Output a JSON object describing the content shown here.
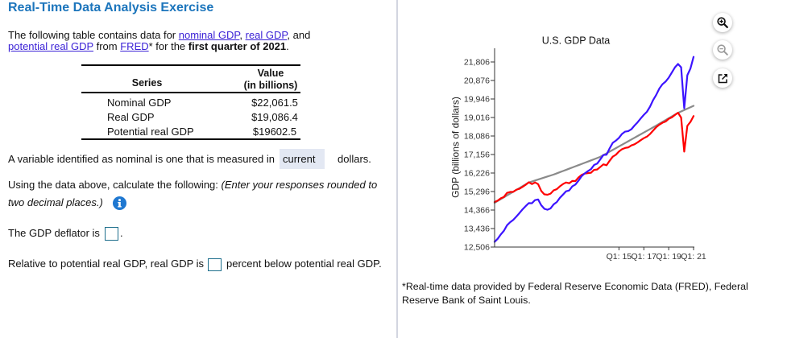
{
  "header": {
    "title": "Real-Time Data Analysis Exercise"
  },
  "intro": {
    "line1": {
      "before": "The following table contains data for ",
      "link_nominal": "nominal GDP",
      "sep": ", ",
      "link_real": "real GDP",
      "after": ", and"
    },
    "line2": {
      "link_potential": "potential real GDP",
      "from": " from ",
      "link_fred": "FRED",
      "for_the": "* for the ",
      "bold": "first quarter of 2021",
      "period": "."
    }
  },
  "table": {
    "headers": {
      "series": "Series",
      "value_line1": "Value",
      "value_line2": "(in billions)"
    },
    "rows": [
      {
        "series": "Nominal GDP",
        "value": "$22,061.5"
      },
      {
        "series": "Real GDP",
        "value": "$19,086.4"
      },
      {
        "series": "Potential real GDP",
        "value": "$19602.5"
      }
    ]
  },
  "question_nominal": {
    "before": "A variable identified as nominal is one that is measured in",
    "selected": "current",
    "after": "dollars."
  },
  "instructions": {
    "text": "Using the data above, calculate the following: ",
    "italic_line1": "(Enter your responses rounded to",
    "italic_line2": "two decimal places.)",
    "icon": "info-icon"
  },
  "deflator": {
    "label": "The GDP deflator is",
    "value": "",
    "suffix": "."
  },
  "output_gap": {
    "label": "Relative to potential real GDP, real GDP is",
    "value": "",
    "suffix": "percent below potential real GDP."
  },
  "chart_toolbar": {
    "zoom_in_icon": "zoom-in-icon",
    "zoom_out_icon": "zoom-out-icon",
    "popout_icon": "open-in-new-window-icon"
  },
  "footnote": {
    "line1": "*Real-time data provided by Federal Reserve Economic Data (FRED), Federal",
    "line2": "Reserve Bank of Saint Louis."
  },
  "colors": {
    "title": "#1c75bc",
    "link": "#3b22d6",
    "info": "#1f78d1",
    "input_border": "#1d6e8c",
    "select_bg": "#e3e8f3"
  },
  "chart_data": {
    "type": "line",
    "title": "U.S. GDP Data",
    "xlabel": "",
    "ylabel": "GDP (billions of dollars)",
    "grid": false,
    "legend": "none",
    "xlim": [
      2005,
      2021
    ],
    "ylim": [
      12506,
      21806
    ],
    "y_ticks": [
      12506,
      13436,
      14366,
      15296,
      16226,
      17156,
      18086,
      19016,
      19946,
      20876,
      21806
    ],
    "y_tick_labels": [
      "12,506",
      "13,436",
      "14,366",
      "15,296",
      "16,226",
      "17,156",
      "18,086",
      "19,016",
      "19,946",
      "20,876",
      "21,806"
    ],
    "x_ticks": [
      2015,
      2017,
      2019,
      2021
    ],
    "x_tick_labels": [
      "Q1: 15",
      "Q1: 17",
      "Q1: 19",
      "Q1: 21"
    ],
    "x": [
      2005,
      2005.25,
      2005.5,
      2005.75,
      2006,
      2006.25,
      2006.5,
      2006.75,
      2007,
      2007.25,
      2007.5,
      2007.75,
      2008,
      2008.25,
      2008.5,
      2008.75,
      2009,
      2009.25,
      2009.5,
      2009.75,
      2010,
      2010.25,
      2010.5,
      2010.75,
      2011,
      2011.25,
      2011.5,
      2011.75,
      2012,
      2012.25,
      2012.5,
      2012.75,
      2013,
      2013.25,
      2013.5,
      2013.75,
      2014,
      2014.25,
      2014.5,
      2014.75,
      2015,
      2015.25,
      2015.5,
      2015.75,
      2016,
      2016.25,
      2016.5,
      2016.75,
      2017,
      2017.25,
      2017.5,
      2017.75,
      2018,
      2018.25,
      2018.5,
      2018.75,
      2019,
      2019.25,
      2019.5,
      2019.75,
      2020,
      2020.25,
      2020.5,
      2020.75,
      2021
    ],
    "series": [
      {
        "table_row": 2,
        "color": "#8a8a8a",
        "values": [
          14730,
          14823,
          14915,
          15008,
          15101,
          15194,
          15286,
          15379,
          15472,
          15565,
          15657,
          15750,
          15800,
          15850,
          15900,
          15950,
          16000,
          16050,
          16100,
          16150,
          16209,
          16268,
          16327,
          16386,
          16445,
          16505,
          16564,
          16623,
          16682,
          16741,
          16800,
          16860,
          16920,
          16980,
          17040,
          17127,
          17214,
          17301,
          17388,
          17475,
          17562,
          17649,
          17736,
          17824,
          17911,
          17998,
          18085,
          18172,
          18259,
          18346,
          18433,
          18520,
          18611,
          18703,
          18794,
          18885,
          18976,
          19068,
          19159,
          19250,
          19321,
          19391,
          19462,
          19532,
          19602.5
        ]
      },
      {
        "table_row": 1,
        "color": "#ff0000",
        "values": [
          14767.8,
          14839.7,
          14955.3,
          15024.7,
          15228.3,
          15274.8,
          15280.3,
          15387.0,
          15436.9,
          15530.4,
          15634.1,
          15762.0,
          15671.4,
          15752.3,
          15667.0,
          15328.0,
          15155.9,
          15134.1,
          15189.2,
          15356.1,
          15415.1,
          15557.5,
          15672.0,
          15750.6,
          15712.8,
          15825.1,
          15820.7,
          16004.1,
          16129.4,
          16198.8,
          16220.7,
          16239.1,
          16383.0,
          16403.2,
          16531.7,
          16663.6,
          16616.5,
          16841.5,
          17047.1,
          17143.0,
          17305.8,
          17422.8,
          17486.0,
          17514.1,
          17613.3,
          17668.2,
          17764.6,
          17876.2,
          17977.3,
          18054.1,
          18185.6,
          18359.4,
          18530.5,
          18654.4,
          18752.4,
          18813.9,
          18950.3,
          19020.6,
          19141.7,
          19254.0,
          19010.8,
          17302.5,
          18596.5,
          18794.4,
          19086.4
        ]
      },
      {
        "table_row": 0,
        "color": "#3c14ff",
        "values": [
          12767.3,
          12922.7,
          13142.6,
          13324.2,
          13599.2,
          13753.4,
          13870.2,
          14039.6,
          14215.7,
          14402.1,
          14564.1,
          14715.1,
          14706.5,
          14865.7,
          14898.9,
          14608.2,
          14430.9,
          14381.2,
          14448.9,
          14651.0,
          14764.6,
          14980.2,
          15141.6,
          15309.5,
          15351.4,
          15557.5,
          15647.7,
          15842.3,
          16068.8,
          16207.1,
          16319.5,
          16420.4,
          16629.1,
          16699.6,
          16911.1,
          17133.1,
          17144.3,
          17462.7,
          17743.2,
          17852.5,
          17991.3,
          18193.7,
          18307.0,
          18332.1,
          18425.3,
          18611.6,
          18775.5,
          18968.0,
          19148.2,
          19304.5,
          19561.9,
          19894.8,
          20155.5,
          20470.2,
          20687.3,
          20819.3,
          21013.1,
          21272.4,
          21531.8,
          21706.5,
          21538.0,
          19477.4,
          21138.6,
          21477.6,
          22061.5
        ]
      }
    ]
  }
}
